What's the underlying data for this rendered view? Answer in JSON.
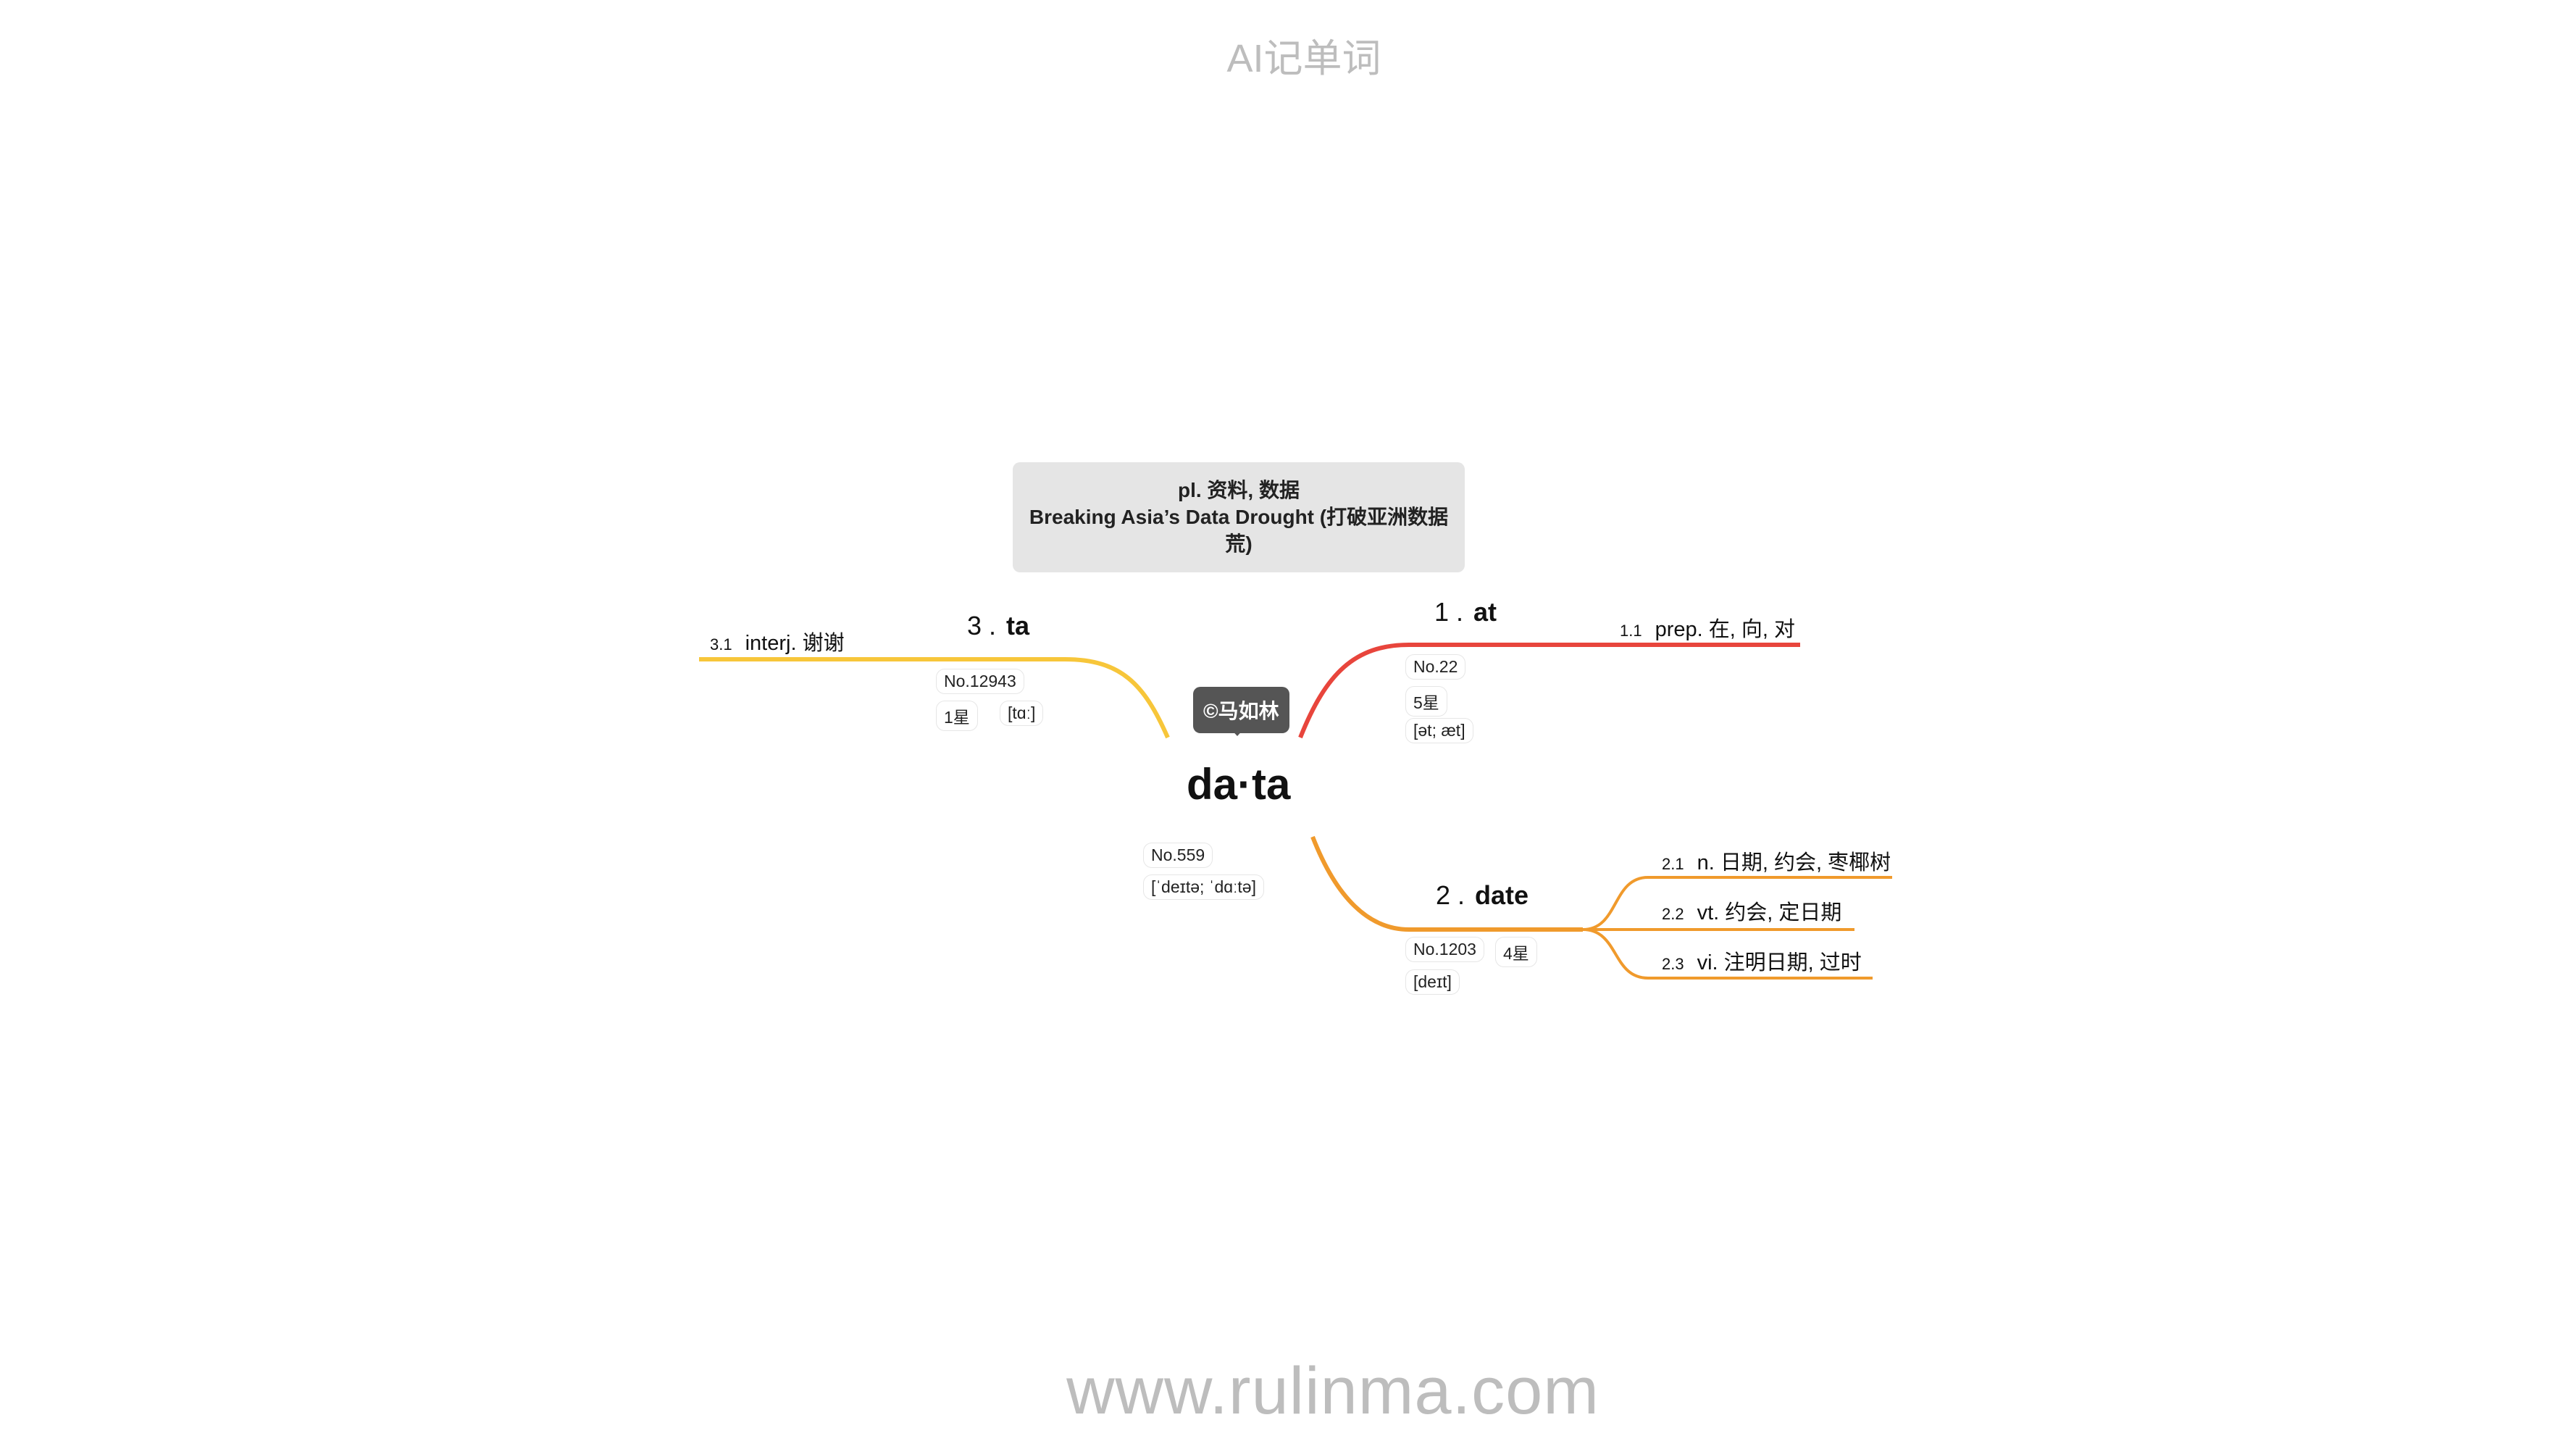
{
  "header": {
    "title": "AI记单词"
  },
  "footer": {
    "url": "www.rulinma.com"
  },
  "copyright_badge": "©马如林",
  "center": {
    "word": "da·ta",
    "tags": [
      "No.559",
      "[ˈdeɪtə; ˈdɑːtə]"
    ],
    "callout_line1": "pl. 资料, 数据",
    "callout_line2": "Breaking Asia’s Data Drought (打破亚洲数据荒)"
  },
  "branches": [
    {
      "num": "1 .",
      "word": "at",
      "color": "#e8453c",
      "tags": [
        "No.22",
        "5星",
        "[ət; æt]"
      ],
      "senses": [
        {
          "num": "1.1",
          "text": "prep. 在, 向, 对"
        }
      ]
    },
    {
      "num": "2 .",
      "word": "date",
      "color": "#f09a2c",
      "tags": [
        "No.1203",
        "4星",
        "[deɪt]"
      ],
      "senses": [
        {
          "num": "2.1",
          "text": "n. 日期, 约会, 枣椰树"
        },
        {
          "num": "2.2",
          "text": "vt. 约会, 定日期"
        },
        {
          "num": "2.3",
          "text": "vi. 注明日期, 过时"
        }
      ]
    },
    {
      "num": "3 .",
      "word": "ta",
      "color": "#f7c63a",
      "tags": [
        "No.12943",
        "1星",
        "[tɑː]"
      ],
      "senses": [
        {
          "num": "3.1",
          "text": "interj. 谢谢"
        }
      ]
    }
  ]
}
